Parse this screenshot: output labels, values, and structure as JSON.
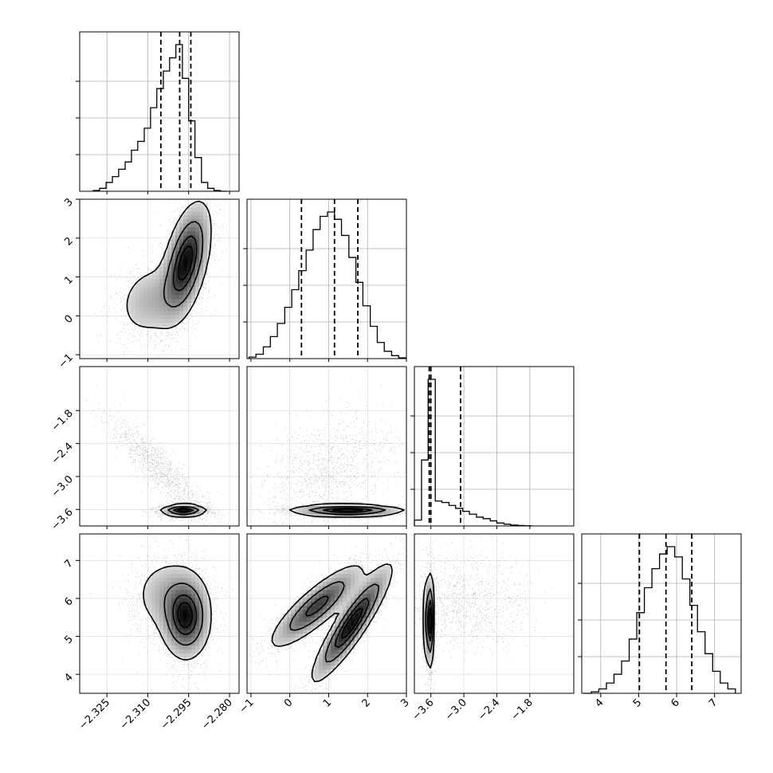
{
  "chart_data": {
    "type": "corner",
    "n_params": 4,
    "colors": {
      "line": "#000000",
      "grid": "#b0b0b0",
      "points": "#333333"
    },
    "params": [
      {
        "index": 0,
        "range": [
          -2.335,
          -2.2765
        ],
        "ticks": [
          -2.325,
          -2.31,
          -2.295,
          -2.28
        ],
        "tick_labels": [
          "−2.325",
          "−2.310",
          "−2.295",
          "−2.280"
        ]
      },
      {
        "index": 1,
        "range": [
          -1.1,
          3.0
        ],
        "ticks": [
          -1,
          0,
          1,
          2,
          3
        ],
        "tick_labels": [
          "−1",
          "0",
          "1",
          "2",
          "3"
        ]
      },
      {
        "index": 2,
        "range": [
          -3.9,
          -1.0
        ],
        "ticks": [
          -3.6,
          -3.0,
          -2.4,
          -1.8
        ],
        "tick_labels": [
          "−3.6",
          "−3.0",
          "−2.4",
          "−1.8"
        ]
      },
      {
        "index": 3,
        "range": [
          3.5,
          7.7
        ],
        "ticks": [
          4,
          5,
          6,
          7
        ],
        "tick_labels": [
          "4",
          "5",
          "6",
          "7"
        ]
      }
    ],
    "diagonal": [
      {
        "param": 0,
        "bin_edges": [
          -2.33,
          -2.3277,
          -2.3253,
          -2.323,
          -2.3207,
          -2.3183,
          -2.316,
          -2.3137,
          -2.3113,
          -2.309,
          -2.3067,
          -2.3043,
          -2.302,
          -2.2997,
          -2.2973,
          -2.295,
          -2.2927,
          -2.2903,
          -2.288,
          -2.2857,
          -2.2833,
          -2.281
        ],
        "counts": [
          0.005,
          0.02,
          0.06,
          0.1,
          0.15,
          0.2,
          0.28,
          0.34,
          0.43,
          0.57,
          0.7,
          0.82,
          0.91,
          1.0,
          0.77,
          0.48,
          0.23,
          0.06,
          0.02,
          0.005,
          0.0
        ],
        "quantiles": [
          -2.3052,
          -2.2983,
          -2.2942
        ]
      },
      {
        "param": 1,
        "bin_edges": [
          -1.05,
          -0.87,
          -0.68,
          -0.5,
          -0.32,
          -0.13,
          0.05,
          0.23,
          0.42,
          0.6,
          0.78,
          0.97,
          1.15,
          1.33,
          1.52,
          1.7,
          1.88,
          2.07,
          2.25,
          2.43,
          2.62,
          2.8,
          2.98
        ],
        "counts": [
          0.01,
          0.03,
          0.08,
          0.15,
          0.24,
          0.35,
          0.47,
          0.6,
          0.74,
          0.88,
          0.97,
          1.0,
          0.95,
          0.84,
          0.69,
          0.52,
          0.36,
          0.22,
          0.11,
          0.05,
          0.02,
          0.005
        ],
        "quantiles": [
          0.3,
          1.15,
          1.75
        ]
      },
      {
        "param": 2,
        "bin_edges": [
          -3.9,
          -3.77,
          -3.65,
          -3.52,
          -3.4,
          -3.27,
          -3.15,
          -3.02,
          -2.9,
          -2.77,
          -2.65,
          -2.52,
          -2.4,
          -2.27,
          -2.15,
          -2.02,
          -1.9,
          -1.77
        ],
        "counts": [
          0.04,
          0.45,
          1.0,
          0.17,
          0.16,
          0.14,
          0.12,
          0.1,
          0.08,
          0.06,
          0.05,
          0.035,
          0.02,
          0.012,
          0.006,
          0.003,
          0.001
        ],
        "quantiles": [
          -3.63,
          -3.6,
          -3.06
        ]
      },
      {
        "param": 3,
        "bin_edges": [
          3.55,
          3.75,
          3.95,
          4.15,
          4.35,
          4.55,
          4.75,
          4.95,
          5.15,
          5.35,
          5.55,
          5.75,
          5.95,
          6.15,
          6.35,
          6.55,
          6.75,
          6.95,
          7.15,
          7.35,
          7.55
        ],
        "counts": [
          0.0,
          0.01,
          0.03,
          0.07,
          0.13,
          0.22,
          0.37,
          0.55,
          0.72,
          0.85,
          0.95,
          1.0,
          0.93,
          0.78,
          0.6,
          0.42,
          0.27,
          0.15,
          0.07,
          0.03
        ],
        "quantiles": [
          5.02,
          5.72,
          6.4
        ]
      }
    ],
    "pairs": [
      {
        "xparam": 0,
        "yparam": 1,
        "modes": [
          {
            "mx": -2.296,
            "my": 1.4,
            "sx": 0.0045,
            "sy": 0.75,
            "rho": 0.5,
            "w": 0.75
          },
          {
            "mx": -2.309,
            "my": 0.4,
            "sx": 0.007,
            "sy": 0.55,
            "rho": 0.2,
            "w": 0.25
          }
        ]
      },
      {
        "xparam": 0,
        "yparam": 2,
        "modes": [
          {
            "mx": -2.297,
            "my": -3.62,
            "sx": 0.004,
            "sy": 0.05,
            "rho": 0.0,
            "w": 0.55
          },
          {
            "mx": -2.306,
            "my": -2.85,
            "sx": 0.008,
            "sy": 0.4,
            "rho": -0.9,
            "w": 0.45
          }
        ]
      },
      {
        "xparam": 0,
        "yparam": 3,
        "modes": [
          {
            "mx": -2.296,
            "my": 5.5,
            "sx": 0.0045,
            "sy": 0.55,
            "rho": 0.0,
            "w": 0.7
          },
          {
            "mx": -2.303,
            "my": 6.1,
            "sx": 0.007,
            "sy": 0.55,
            "rho": 0.0,
            "w": 0.3
          }
        ]
      },
      {
        "xparam": 1,
        "yparam": 2,
        "modes": [
          {
            "mx": 1.5,
            "my": -3.62,
            "sx": 0.7,
            "sy": 0.05,
            "rho": 0.0,
            "w": 0.55
          },
          {
            "mx": 1.0,
            "my": -2.9,
            "sx": 0.75,
            "sy": 0.45,
            "rho": 0.4,
            "w": 0.45
          }
        ]
      },
      {
        "xparam": 1,
        "yparam": 3,
        "modes": [
          {
            "mx": 0.7,
            "my": 5.8,
            "sx": 0.6,
            "sy": 0.55,
            "rho": 0.85,
            "w": 0.45
          },
          {
            "mx": 1.6,
            "my": 5.35,
            "sx": 0.5,
            "sy": 0.75,
            "rho": 0.9,
            "w": 0.55
          }
        ]
      },
      {
        "xparam": 2,
        "yparam": 3,
        "modes": [
          {
            "mx": -3.63,
            "my": 5.4,
            "sx": 0.04,
            "sy": 0.6,
            "rho": 0.0,
            "w": 0.55
          },
          {
            "mx": -3.0,
            "my": 5.9,
            "sx": 0.5,
            "sy": 0.55,
            "rho": 0.0,
            "w": 0.45
          }
        ]
      }
    ],
    "contour_levels": [
      0.12,
      0.39,
      0.68,
      0.86
    ],
    "grid": true
  }
}
